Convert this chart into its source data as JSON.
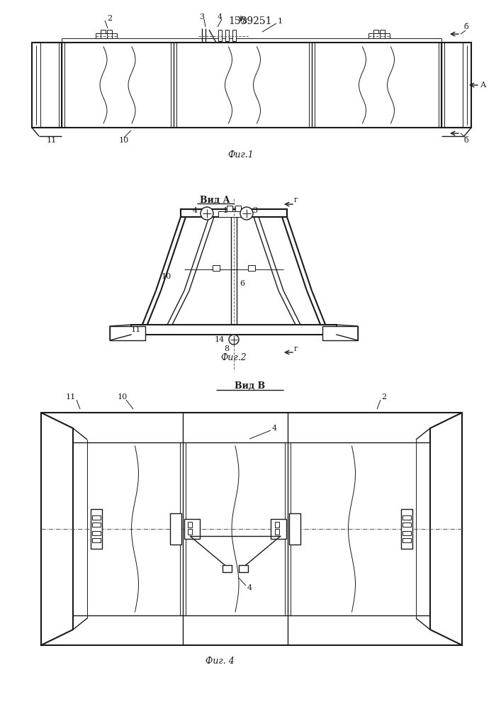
{
  "title": "1539251",
  "bg_color": "#ffffff",
  "line_color": "#1a1a1a",
  "fig1_label": "Фиг.1",
  "fig2_label": "Фиг.2",
  "fig4_label": "Фиг. 4",
  "vid_a_label": "Вид А",
  "vid_b_label": "Вид В"
}
